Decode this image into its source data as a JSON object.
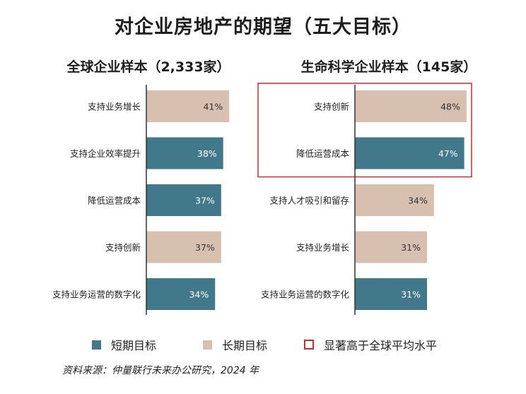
{
  "title": "对企业房地产的期望（五大目标）",
  "colors": {
    "short_term": "#41788a",
    "long_term": "#d7c0b0",
    "highlight_border": "#d22b2b",
    "axis": "#333333"
  },
  "legend": {
    "short_term": "短期目标",
    "long_term": "长期目标",
    "highlight": "显著高于全球平均水平"
  },
  "source": "资料来源：仲量联行未来办公研究，2024 年",
  "chart_data": [
    {
      "type": "bar",
      "orientation": "horizontal",
      "title": "全球企业样本（2,333家）",
      "categories": [
        "支持业务增长",
        "支持企业效率提升",
        "降低运营成本",
        "支持创新",
        "支持业务运营的数字化"
      ],
      "values": [
        41,
        38,
        37,
        37,
        34
      ],
      "labels": [
        "41%",
        "38%",
        "37%",
        "37%",
        "34%"
      ],
      "groups": [
        "long_term",
        "short_term",
        "short_term",
        "long_term",
        "short_term"
      ],
      "unit": "%"
    },
    {
      "type": "bar",
      "orientation": "horizontal",
      "title": "生命科学企业样本（145家）",
      "categories": [
        "支持创新",
        "降低运营成本",
        "支持人才吸引和留存",
        "支持业务增长",
        "支持业务运营的数字化"
      ],
      "values": [
        48,
        47,
        34,
        31,
        31
      ],
      "labels": [
        "48%",
        "47%",
        "34%",
        "31%",
        "31%"
      ],
      "groups": [
        "long_term",
        "short_term",
        "long_term",
        "long_term",
        "short_term"
      ],
      "highlighted": [
        0,
        1
      ],
      "unit": "%"
    }
  ]
}
